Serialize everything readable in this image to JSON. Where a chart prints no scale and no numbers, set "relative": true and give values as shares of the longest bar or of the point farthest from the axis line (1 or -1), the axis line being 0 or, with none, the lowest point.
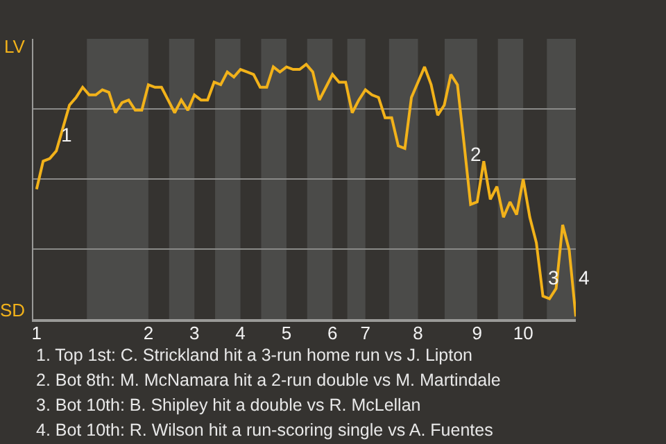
{
  "chart_data": {
    "type": "line",
    "categories": [
      "1",
      null,
      null,
      null,
      null,
      null,
      null,
      null,
      null,
      null,
      null,
      null,
      null,
      null,
      null,
      null,
      null,
      "2",
      null,
      null,
      null,
      null,
      null,
      null,
      "3",
      null,
      null,
      null,
      null,
      null,
      null,
      "4",
      null,
      null,
      null,
      null,
      null,
      null,
      "5",
      null,
      null,
      null,
      null,
      null,
      null,
      "6",
      null,
      null,
      null,
      null,
      "7",
      null,
      null,
      null,
      null,
      null,
      null,
      null,
      "8",
      null,
      null,
      null,
      null,
      null,
      null,
      null,
      null,
      "9",
      null,
      null,
      null,
      null,
      null,
      null,
      "10",
      null,
      null,
      null,
      null,
      null,
      null,
      null,
      null
    ],
    "relative": true,
    "series": [
      {
        "color": "#f2b21a",
        "values": [
          0.51,
          0.62,
          0.63,
          0.66,
          0.75,
          0.84,
          0.87,
          0.91,
          0.88,
          0.88,
          0.9,
          0.89,
          0.81,
          0.85,
          0.86,
          0.82,
          0.82,
          0.92,
          0.91,
          0.91,
          0.86,
          0.81,
          0.86,
          0.82,
          0.88,
          0.86,
          0.86,
          0.93,
          0.92,
          0.97,
          0.95,
          0.98,
          0.97,
          0.96,
          0.91,
          0.91,
          0.99,
          0.97,
          0.99,
          0.98,
          0.98,
          1,
          0.97,
          0.86,
          0.91,
          0.96,
          0.93,
          0.93,
          0.81,
          0.86,
          0.9,
          0.88,
          0.87,
          0.79,
          0.79,
          0.68,
          0.67,
          0.87,
          0.93,
          0.99,
          0.92,
          0.8,
          0.84,
          0.96,
          0.92,
          0.69,
          0.45,
          0.46,
          0.62,
          0.47,
          0.52,
          0.4,
          0.46,
          0.41,
          0.55,
          0.4,
          0.3,
          0.09,
          0.08,
          0.12,
          0.37,
          0.27,
          0.01
        ]
      }
    ],
    "grid": "y",
    "marker": "none",
    "line_style": "solid",
    "annotations": [
      "LV",
      "SD",
      "1",
      "2",
      "3",
      "4",
      "1. Top 1st: C. Strickland hit a 3-run home run vs J. Lipton",
      "2. Bot 8th: M. McNamara hit a 2-run double vs M. Martindale",
      "3. Bot 10th: B. Shipley hit a double vs R. McLellan",
      "4. Bot 10th: R. Wilson hit a run-scoring single vs A. Fuentes"
    ]
  }
}
